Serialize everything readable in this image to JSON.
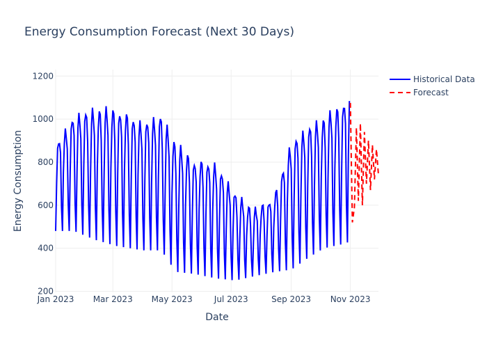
{
  "chart_data": {
    "type": "line",
    "title": "Energy Consumption Forecast (Next 30 Days)",
    "xlabel": "Date",
    "ylabel": "Energy Consumption",
    "ylim": [
      195,
      1230
    ],
    "xlim": [
      "2023-01-01",
      "2023-11-30"
    ],
    "y_ticks": [
      200,
      400,
      600,
      800,
      1000,
      1200
    ],
    "x_ticks": [
      {
        "date": "2023-01-01",
        "label": "Jan 2023"
      },
      {
        "date": "2023-03-01",
        "label": "Mar 2023"
      },
      {
        "date": "2023-05-01",
        "label": "May 2023"
      },
      {
        "date": "2023-07-01",
        "label": "Jul 2023"
      },
      {
        "date": "2023-09-01",
        "label": "Sep 2023"
      },
      {
        "date": "2023-11-01",
        "label": "Nov 2023"
      }
    ],
    "grid": true,
    "legend_position": "top-right",
    "series": [
      {
        "name": "Historical Data",
        "color": "#0000ff",
        "dash": "solid",
        "start_date": "2023-01-01",
        "end_date": "2023-10-31",
        "weekly_pattern": "weekday-high-weekend-low",
        "envelope": [
          {
            "date": "2023-01-01",
            "high": 880,
            "low": 480
          },
          {
            "date": "2023-01-20",
            "high": 1010,
            "low": 480
          },
          {
            "date": "2023-02-10",
            "high": 1040,
            "low": 440
          },
          {
            "date": "2023-03-05",
            "high": 1040,
            "low": 410
          },
          {
            "date": "2023-04-01",
            "high": 980,
            "low": 390
          },
          {
            "date": "2023-04-20",
            "high": 1010,
            "low": 390
          },
          {
            "date": "2023-05-05",
            "high": 880,
            "low": 290
          },
          {
            "date": "2023-05-25",
            "high": 800,
            "low": 280
          },
          {
            "date": "2023-06-15",
            "high": 790,
            "low": 260
          },
          {
            "date": "2023-07-05",
            "high": 650,
            "low": 250
          },
          {
            "date": "2023-07-25",
            "high": 570,
            "low": 270
          },
          {
            "date": "2023-08-15",
            "high": 640,
            "low": 290
          },
          {
            "date": "2023-09-01",
            "high": 890,
            "low": 300
          },
          {
            "date": "2023-09-20",
            "high": 960,
            "low": 360
          },
          {
            "date": "2023-10-05",
            "high": 1000,
            "low": 400
          },
          {
            "date": "2023-10-25",
            "high": 1070,
            "low": 420
          },
          {
            "date": "2023-10-31",
            "high": 1170,
            "low": 430
          }
        ]
      },
      {
        "name": "Forecast",
        "color": "#ff0000",
        "dash": "dash",
        "start_date": "2023-11-01",
        "end_date": "2023-11-30",
        "values": [
          1075,
          520,
          590,
          960,
          620,
          980,
          600,
          940,
          700,
          900,
          670,
          880,
          720,
          860,
          740
        ]
      }
    ]
  }
}
